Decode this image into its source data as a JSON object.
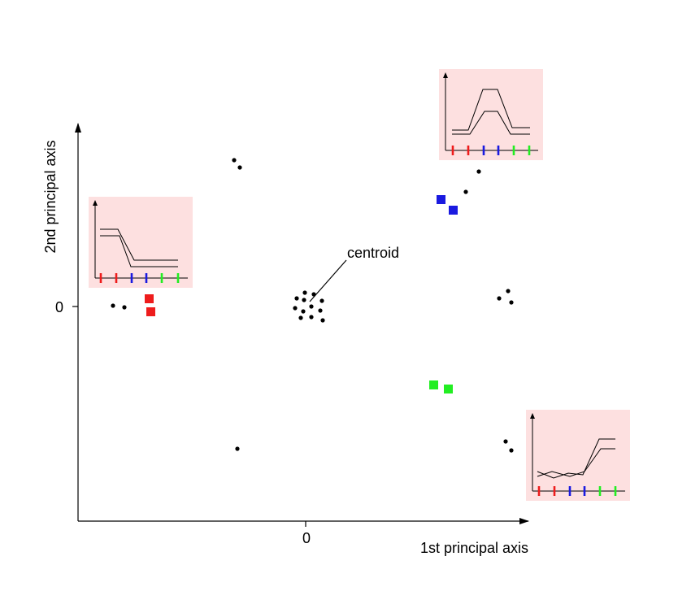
{
  "axes": {
    "x_label": "1st principal axis",
    "y_label": "2nd principal axis",
    "x_zero_label": "0",
    "y_zero_label": "0"
  },
  "annotation": {
    "text": "centroid"
  },
  "colors": {
    "red": "#ee1c1c",
    "blue": "#1a1ae0",
    "green": "#22ee22",
    "inset_background": "#fde0e0",
    "points": "#000000"
  },
  "insets": [
    {
      "name": "left-profile-inset",
      "tick_colors": [
        "red",
        "red",
        "blue",
        "blue",
        "green",
        "green"
      ]
    },
    {
      "name": "top-right-profile-inset",
      "tick_colors": [
        "red",
        "red",
        "blue",
        "blue",
        "green",
        "green"
      ]
    },
    {
      "name": "bottom-right-profile-inset",
      "tick_colors": [
        "red",
        "red",
        "blue",
        "blue",
        "green",
        "green"
      ]
    }
  ]
}
